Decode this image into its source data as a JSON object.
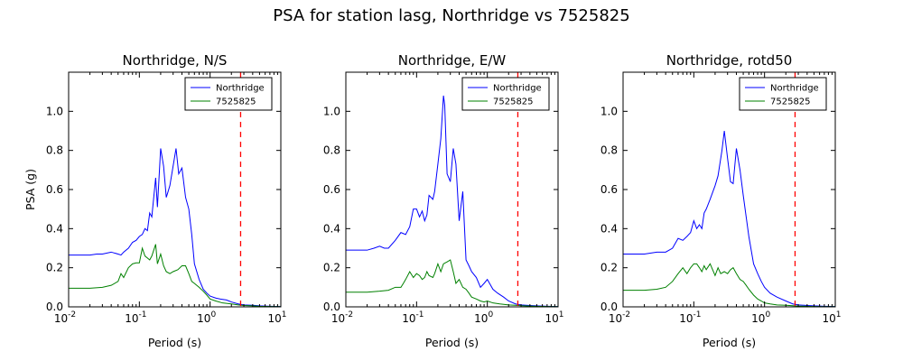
{
  "figure": {
    "suptitle": "PSA for station lasg, Northridge vs 7525825"
  },
  "chart_data": [
    {
      "type": "line",
      "title": "Northridge, N/S",
      "xlabel": "Period (s)",
      "ylabel": "PSA (g)",
      "xscale": "log",
      "xlim": [
        0.01,
        10
      ],
      "ylim": [
        0,
        1.2
      ],
      "xticks": [
        {
          "v": 0.01,
          "label": "10",
          "exp": "-2"
        },
        {
          "v": 0.1,
          "label": "10",
          "exp": "-1"
        },
        {
          "v": 1,
          "label": "10",
          "exp": "0"
        },
        {
          "v": 10,
          "label": "10",
          "exp": "1"
        }
      ],
      "yticks": [
        "0.0",
        "0.2",
        "0.4",
        "0.6",
        "0.8",
        "1.0"
      ],
      "legend": {
        "position": "top-right"
      },
      "vline": {
        "x": 2.7,
        "color": "#ff0000",
        "style": "dashed"
      },
      "series": [
        {
          "name": "Northridge",
          "color": "#0000ff",
          "x": [
            0.01,
            0.02,
            0.025,
            0.03,
            0.04,
            0.05,
            0.055,
            0.06,
            0.07,
            0.08,
            0.09,
            0.1,
            0.11,
            0.12,
            0.13,
            0.14,
            0.15,
            0.17,
            0.18,
            0.2,
            0.22,
            0.24,
            0.25,
            0.27,
            0.3,
            0.33,
            0.36,
            0.4,
            0.45,
            0.5,
            0.55,
            0.6,
            0.7,
            0.8,
            0.9,
            1.0,
            1.2,
            1.4,
            1.7,
            2,
            2.5,
            3,
            4,
            5,
            7,
            10
          ],
          "y": [
            0.265,
            0.265,
            0.27,
            0.27,
            0.28,
            0.27,
            0.265,
            0.28,
            0.3,
            0.33,
            0.34,
            0.36,
            0.37,
            0.4,
            0.39,
            0.48,
            0.46,
            0.66,
            0.51,
            0.81,
            0.72,
            0.56,
            0.58,
            0.62,
            0.72,
            0.81,
            0.68,
            0.71,
            0.56,
            0.5,
            0.37,
            0.22,
            0.14,
            0.09,
            0.07,
            0.055,
            0.045,
            0.04,
            0.035,
            0.025,
            0.015,
            0.01,
            0.008,
            0.005,
            0.003,
            0.002
          ]
        },
        {
          "name": "7525825",
          "color": "#008000",
          "x": [
            0.01,
            0.02,
            0.03,
            0.04,
            0.05,
            0.055,
            0.06,
            0.07,
            0.08,
            0.09,
            0.1,
            0.11,
            0.12,
            0.13,
            0.14,
            0.15,
            0.17,
            0.18,
            0.2,
            0.22,
            0.24,
            0.27,
            0.3,
            0.35,
            0.4,
            0.45,
            0.5,
            0.55,
            0.6,
            0.7,
            0.8,
            0.9,
            1.0,
            1.2,
            1.5,
            2,
            2.5,
            3,
            4,
            5,
            7,
            10
          ],
          "y": [
            0.095,
            0.095,
            0.1,
            0.11,
            0.13,
            0.17,
            0.15,
            0.2,
            0.22,
            0.225,
            0.225,
            0.3,
            0.26,
            0.25,
            0.24,
            0.26,
            0.32,
            0.22,
            0.27,
            0.21,
            0.18,
            0.17,
            0.18,
            0.19,
            0.21,
            0.21,
            0.17,
            0.13,
            0.12,
            0.1,
            0.08,
            0.06,
            0.04,
            0.03,
            0.02,
            0.015,
            0.01,
            0.007,
            0.005,
            0.003,
            0.002,
            0.001
          ]
        }
      ]
    },
    {
      "type": "line",
      "title": "Northridge, E/W",
      "xlabel": "Period (s)",
      "ylabel": "",
      "xscale": "log",
      "xlim": [
        0.01,
        10
      ],
      "ylim": [
        0,
        1.2
      ],
      "xticks": [
        {
          "v": 0.01,
          "label": "10",
          "exp": "-2"
        },
        {
          "v": 0.1,
          "label": "10",
          "exp": "-1"
        },
        {
          "v": 1,
          "label": "10",
          "exp": "0"
        },
        {
          "v": 10,
          "label": "10",
          "exp": "1"
        }
      ],
      "yticks": [
        "0.0",
        "0.2",
        "0.4",
        "0.6",
        "0.8",
        "1.0"
      ],
      "legend": {
        "position": "top-right"
      },
      "vline": {
        "x": 2.7,
        "color": "#ff0000",
        "style": "dashed"
      },
      "series": [
        {
          "name": "Northridge",
          "color": "#0000ff",
          "x": [
            0.01,
            0.02,
            0.025,
            0.03,
            0.035,
            0.04,
            0.05,
            0.06,
            0.07,
            0.08,
            0.09,
            0.1,
            0.11,
            0.12,
            0.13,
            0.14,
            0.15,
            0.17,
            0.18,
            0.2,
            0.22,
            0.24,
            0.25,
            0.27,
            0.3,
            0.33,
            0.36,
            0.4,
            0.45,
            0.5,
            0.55,
            0.6,
            0.7,
            0.8,
            0.9,
            1.0,
            1.2,
            1.4,
            1.7,
            2,
            2.5,
            3,
            4,
            5,
            7,
            10
          ],
          "y": [
            0.29,
            0.29,
            0.3,
            0.31,
            0.3,
            0.3,
            0.34,
            0.38,
            0.37,
            0.41,
            0.5,
            0.5,
            0.46,
            0.49,
            0.44,
            0.47,
            0.57,
            0.55,
            0.59,
            0.73,
            0.86,
            1.08,
            1.03,
            0.68,
            0.64,
            0.81,
            0.73,
            0.44,
            0.59,
            0.24,
            0.21,
            0.18,
            0.15,
            0.1,
            0.12,
            0.14,
            0.09,
            0.07,
            0.05,
            0.03,
            0.015,
            0.01,
            0.007,
            0.005,
            0.003,
            0.002
          ]
        },
        {
          "name": "7525825",
          "color": "#008000",
          "x": [
            0.01,
            0.02,
            0.03,
            0.04,
            0.05,
            0.06,
            0.065,
            0.07,
            0.08,
            0.09,
            0.1,
            0.11,
            0.12,
            0.13,
            0.14,
            0.15,
            0.17,
            0.18,
            0.2,
            0.22,
            0.24,
            0.27,
            0.3,
            0.33,
            0.36,
            0.4,
            0.45,
            0.5,
            0.55,
            0.6,
            0.7,
            0.8,
            0.9,
            1.0,
            1.2,
            1.5,
            2,
            2.5,
            3,
            4,
            5,
            7,
            10
          ],
          "y": [
            0.075,
            0.075,
            0.08,
            0.085,
            0.1,
            0.1,
            0.12,
            0.14,
            0.18,
            0.15,
            0.17,
            0.16,
            0.14,
            0.15,
            0.18,
            0.16,
            0.15,
            0.17,
            0.22,
            0.18,
            0.22,
            0.23,
            0.24,
            0.18,
            0.12,
            0.14,
            0.1,
            0.09,
            0.07,
            0.05,
            0.04,
            0.03,
            0.025,
            0.03,
            0.02,
            0.015,
            0.01,
            0.008,
            0.006,
            0.004,
            0.003,
            0.002,
            0.001
          ]
        }
      ]
    },
    {
      "type": "line",
      "title": "Northridge, rotd50",
      "xlabel": "Period (s)",
      "ylabel": "",
      "xscale": "log",
      "xlim": [
        0.01,
        10
      ],
      "ylim": [
        0,
        1.2
      ],
      "xticks": [
        {
          "v": 0.01,
          "label": "10",
          "exp": "-2"
        },
        {
          "v": 0.1,
          "label": "10",
          "exp": "-1"
        },
        {
          "v": 1,
          "label": "10",
          "exp": "0"
        },
        {
          "v": 10,
          "label": "10",
          "exp": "1"
        }
      ],
      "yticks": [
        "0.0",
        "0.2",
        "0.4",
        "0.6",
        "0.8",
        "1.0"
      ],
      "legend": {
        "position": "top-right"
      },
      "vline": {
        "x": 2.7,
        "color": "#ff0000",
        "style": "dashed"
      },
      "series": [
        {
          "name": "Northridge",
          "color": "#0000ff",
          "x": [
            0.01,
            0.02,
            0.03,
            0.04,
            0.05,
            0.06,
            0.07,
            0.08,
            0.09,
            0.1,
            0.11,
            0.12,
            0.13,
            0.14,
            0.15,
            0.17,
            0.2,
            0.22,
            0.25,
            0.27,
            0.3,
            0.33,
            0.36,
            0.4,
            0.45,
            0.5,
            0.55,
            0.6,
            0.7,
            0.8,
            0.9,
            1.0,
            1.2,
            1.5,
            2,
            2.5,
            3,
            4,
            5,
            7,
            10
          ],
          "y": [
            0.27,
            0.27,
            0.28,
            0.28,
            0.3,
            0.35,
            0.34,
            0.36,
            0.38,
            0.44,
            0.4,
            0.42,
            0.4,
            0.48,
            0.5,
            0.55,
            0.62,
            0.67,
            0.8,
            0.9,
            0.76,
            0.64,
            0.63,
            0.81,
            0.7,
            0.57,
            0.46,
            0.36,
            0.22,
            0.17,
            0.13,
            0.1,
            0.07,
            0.05,
            0.03,
            0.015,
            0.01,
            0.007,
            0.005,
            0.003,
            0.002
          ]
        },
        {
          "name": "7525825",
          "color": "#008000",
          "x": [
            0.01,
            0.02,
            0.03,
            0.04,
            0.05,
            0.06,
            0.07,
            0.08,
            0.09,
            0.1,
            0.11,
            0.12,
            0.13,
            0.14,
            0.15,
            0.17,
            0.2,
            0.22,
            0.24,
            0.27,
            0.3,
            0.33,
            0.36,
            0.4,
            0.45,
            0.5,
            0.55,
            0.6,
            0.7,
            0.8,
            0.9,
            1.0,
            1.2,
            1.5,
            2,
            2.5,
            3,
            4,
            5,
            7,
            10
          ],
          "y": [
            0.085,
            0.085,
            0.09,
            0.1,
            0.13,
            0.17,
            0.2,
            0.17,
            0.2,
            0.22,
            0.22,
            0.2,
            0.18,
            0.21,
            0.19,
            0.22,
            0.16,
            0.2,
            0.17,
            0.18,
            0.17,
            0.19,
            0.2,
            0.17,
            0.14,
            0.13,
            0.11,
            0.09,
            0.06,
            0.04,
            0.03,
            0.02,
            0.015,
            0.01,
            0.008,
            0.006,
            0.004,
            0.003,
            0.002,
            0.001,
            0.001
          ]
        }
      ]
    }
  ]
}
